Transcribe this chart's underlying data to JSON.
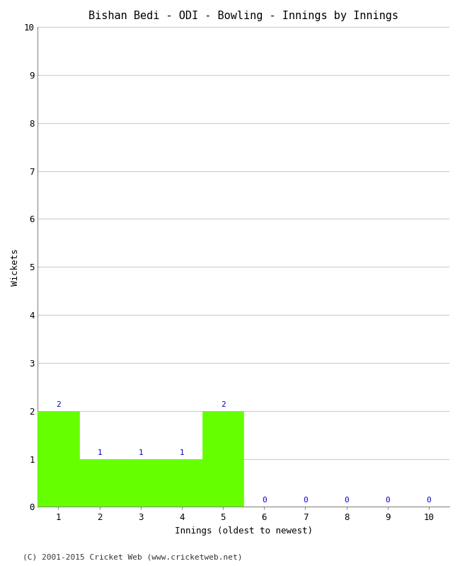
{
  "title": "Bishan Bedi - ODI - Bowling - Innings by Innings",
  "xlabel": "Innings (oldest to newest)",
  "ylabel": "Wickets",
  "innings": [
    1,
    2,
    3,
    4,
    5,
    6,
    7,
    8,
    9,
    10
  ],
  "wickets": [
    2,
    1,
    1,
    1,
    2,
    0,
    0,
    0,
    0,
    0
  ],
  "bar_color": "#66ff00",
  "bar_edge_color": "#66ff00",
  "label_color": "#0000cc",
  "ylim": [
    0,
    10
  ],
  "yticks": [
    0,
    1,
    2,
    3,
    4,
    5,
    6,
    7,
    8,
    9,
    10
  ],
  "xticks": [
    1,
    2,
    3,
    4,
    5,
    6,
    7,
    8,
    9,
    10
  ],
  "background_color": "#ffffff",
  "grid_color": "#cccccc",
  "footer": "(C) 2001-2015 Cricket Web (www.cricketweb.net)",
  "title_fontsize": 11,
  "axis_label_fontsize": 9,
  "tick_fontsize": 9,
  "bar_label_fontsize": 8,
  "footer_fontsize": 8
}
